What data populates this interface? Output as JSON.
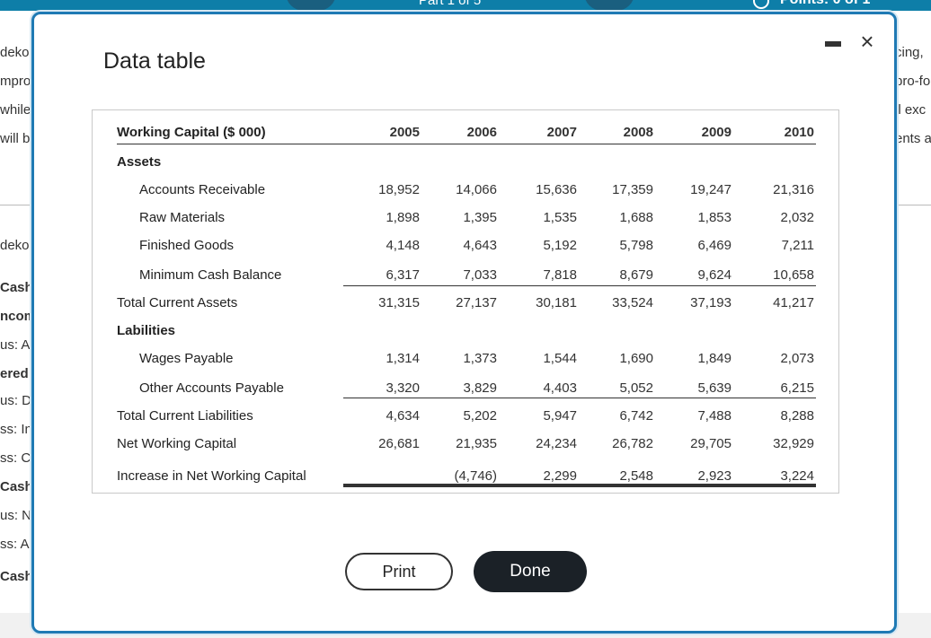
{
  "background": {
    "part_label": "Part 1 of 5",
    "points_label": "Points: 0 of 1",
    "left_fragments": [
      {
        "text": "deko",
        "bold": false
      },
      {
        "text": "mpro",
        "bold": false
      },
      {
        "text": "while",
        "bold": false
      },
      {
        "text": "will b",
        "bold": false
      },
      {
        "text": "deko",
        "bold": false
      },
      {
        "text": "Cash",
        "bold": true
      },
      {
        "text": "ncom",
        "bold": true
      },
      {
        "text": "us: A",
        "bold": false
      },
      {
        "text": "ered",
        "bold": true
      },
      {
        "text": "us: D",
        "bold": false
      },
      {
        "text": "ss: In",
        "bold": false
      },
      {
        "text": "ss: C",
        "bold": false
      },
      {
        "text": "Cash",
        "bold": true
      },
      {
        "text": "us: N",
        "bold": false
      },
      {
        "text": "ss: A",
        "bold": false
      },
      {
        "text": "Cash",
        "bold": true
      }
    ],
    "right_fragments": [
      "cing,",
      "pro-fo",
      "ll exc",
      "ents a"
    ]
  },
  "modal": {
    "title": "Data table",
    "minimize_label": "Minimize",
    "close_label": "×",
    "print_label": "Print",
    "done_label": "Done"
  },
  "table": {
    "header_label": "Working Capital ($ 000)",
    "years": [
      "2005",
      "2006",
      "2007",
      "2008",
      "2009",
      "2010"
    ],
    "sections": [
      {
        "label": "Assets"
      },
      {
        "label": "Labilities"
      }
    ],
    "rows": [
      {
        "label": "Accounts Receivable",
        "indent": true,
        "values": [
          "18,952",
          "14,066",
          "15,636",
          "17,359",
          "19,247",
          "21,316"
        ]
      },
      {
        "label": "Raw Materials",
        "indent": true,
        "values": [
          "1,898",
          "1,395",
          "1,535",
          "1,688",
          "1,853",
          "2,032"
        ]
      },
      {
        "label": "Finished Goods",
        "indent": true,
        "values": [
          "4,148",
          "4,643",
          "5,192",
          "5,798",
          "6,469",
          "7,211"
        ]
      },
      {
        "label": "Minimum Cash Balance",
        "indent": true,
        "values": [
          "6,317",
          "7,033",
          "7,818",
          "8,679",
          "9,624",
          "10,658"
        ]
      },
      {
        "label": "Total Current Assets",
        "indent": false,
        "values": [
          "31,315",
          "27,137",
          "30,181",
          "33,524",
          "37,193",
          "41,217"
        ]
      },
      {
        "label": "Wages Payable",
        "indent": true,
        "values": [
          "1,314",
          "1,373",
          "1,544",
          "1,690",
          "1,849",
          "2,073"
        ]
      },
      {
        "label": "Other Accounts Payable",
        "indent": true,
        "values": [
          "3,320",
          "3,829",
          "4,403",
          "5,052",
          "5,639",
          "6,215"
        ]
      },
      {
        "label": "Total Current Liabilities",
        "indent": false,
        "values": [
          "4,634",
          "5,202",
          "5,947",
          "6,742",
          "7,488",
          "8,288"
        ]
      },
      {
        "label": "Net Working Capital",
        "indent": false,
        "values": [
          "26,681",
          "21,935",
          "24,234",
          "26,782",
          "29,705",
          "32,929"
        ]
      },
      {
        "label": "Increase in Net Working Capital",
        "indent": false,
        "values": [
          "",
          "(4,746)",
          "2,299",
          "2,548",
          "2,923",
          "3,224"
        ]
      }
    ]
  }
}
